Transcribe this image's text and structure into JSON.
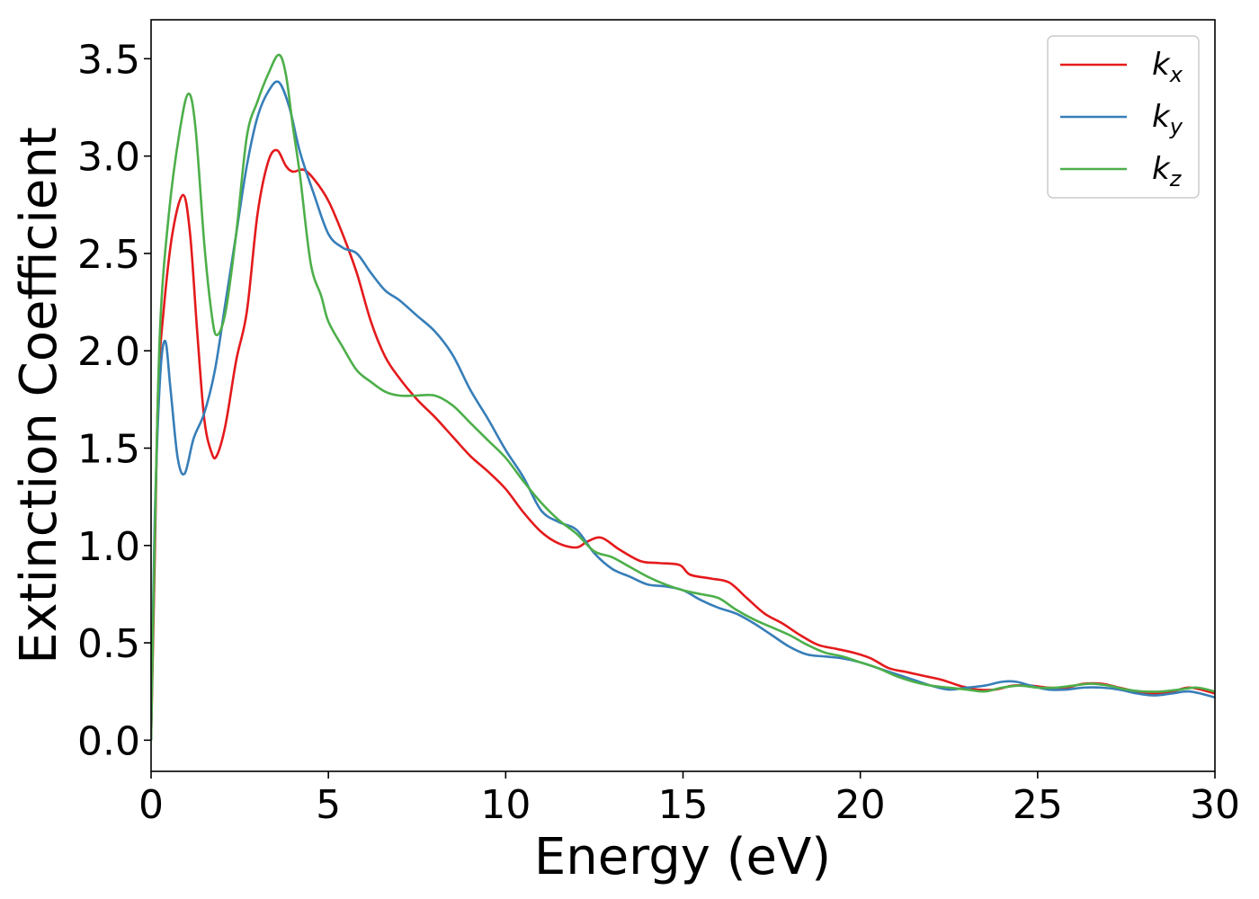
{
  "chart_data": {
    "type": "line",
    "title": "",
    "xlabel": "Energy (eV)",
    "ylabel": "Extinction Coefficient",
    "xlim": [
      0,
      30
    ],
    "ylim": [
      -0.16,
      3.7
    ],
    "xticks": [
      0,
      5,
      10,
      15,
      20,
      25,
      30
    ],
    "xtick_labels": [
      "0",
      "5",
      "10",
      "15",
      "20",
      "25",
      "30"
    ],
    "yticks": [
      0.0,
      0.5,
      1.0,
      1.5,
      2.0,
      2.5,
      3.0,
      3.5
    ],
    "ytick_labels": [
      "0.0",
      "0.5",
      "1.0",
      "1.5",
      "2.0",
      "2.5",
      "3.0",
      "3.5"
    ],
    "grid": false,
    "legend_position": "top-right",
    "series": [
      {
        "name": "k",
        "subscript": "x",
        "color": "#e41a1c",
        "points": [
          [
            0,
            0.0
          ],
          [
            0.1,
            0.9
          ],
          [
            0.2,
            1.8
          ],
          [
            0.35,
            2.2
          ],
          [
            0.6,
            2.6
          ],
          [
            0.9,
            2.8
          ],
          [
            1.1,
            2.6
          ],
          [
            1.3,
            2.1
          ],
          [
            1.5,
            1.65
          ],
          [
            1.7,
            1.48
          ],
          [
            1.85,
            1.46
          ],
          [
            2.1,
            1.62
          ],
          [
            2.4,
            1.95
          ],
          [
            2.7,
            2.2
          ],
          [
            3.0,
            2.7
          ],
          [
            3.3,
            2.97
          ],
          [
            3.55,
            3.03
          ],
          [
            3.8,
            2.95
          ],
          [
            4.0,
            2.92
          ],
          [
            4.3,
            2.93
          ],
          [
            4.6,
            2.88
          ],
          [
            5.0,
            2.77
          ],
          [
            5.4,
            2.6
          ],
          [
            5.8,
            2.4
          ],
          [
            6.2,
            2.15
          ],
          [
            6.6,
            1.97
          ],
          [
            7.0,
            1.86
          ],
          [
            7.5,
            1.75
          ],
          [
            8.0,
            1.66
          ],
          [
            8.5,
            1.56
          ],
          [
            9.0,
            1.46
          ],
          [
            9.5,
            1.38
          ],
          [
            10.0,
            1.29
          ],
          [
            10.5,
            1.17
          ],
          [
            11.0,
            1.07
          ],
          [
            11.5,
            1.01
          ],
          [
            12.0,
            0.99
          ],
          [
            12.3,
            1.02
          ],
          [
            12.7,
            1.04
          ],
          [
            13.2,
            0.98
          ],
          [
            13.8,
            0.92
          ],
          [
            14.3,
            0.91
          ],
          [
            14.9,
            0.9
          ],
          [
            15.2,
            0.85
          ],
          [
            15.8,
            0.83
          ],
          [
            16.3,
            0.81
          ],
          [
            16.8,
            0.73
          ],
          [
            17.3,
            0.65
          ],
          [
            17.8,
            0.6
          ],
          [
            18.3,
            0.54
          ],
          [
            18.8,
            0.49
          ],
          [
            19.3,
            0.47
          ],
          [
            19.8,
            0.45
          ],
          [
            20.3,
            0.42
          ],
          [
            20.8,
            0.37
          ],
          [
            21.3,
            0.35
          ],
          [
            21.8,
            0.33
          ],
          [
            22.3,
            0.31
          ],
          [
            22.8,
            0.28
          ],
          [
            23.3,
            0.26
          ],
          [
            23.8,
            0.26
          ],
          [
            24.3,
            0.28
          ],
          [
            24.8,
            0.28
          ],
          [
            25.3,
            0.27
          ],
          [
            25.8,
            0.27
          ],
          [
            26.3,
            0.29
          ],
          [
            26.8,
            0.29
          ],
          [
            27.3,
            0.27
          ],
          [
            27.8,
            0.25
          ],
          [
            28.3,
            0.24
          ],
          [
            28.8,
            0.25
          ],
          [
            29.3,
            0.27
          ],
          [
            30.0,
            0.24
          ]
        ]
      },
      {
        "name": "k",
        "subscript": "y",
        "color": "#377eb8",
        "points": [
          [
            0,
            0.0
          ],
          [
            0.1,
            1.1
          ],
          [
            0.25,
            1.85
          ],
          [
            0.4,
            2.05
          ],
          [
            0.55,
            1.8
          ],
          [
            0.75,
            1.45
          ],
          [
            0.95,
            1.37
          ],
          [
            1.2,
            1.55
          ],
          [
            1.5,
            1.68
          ],
          [
            1.8,
            1.9
          ],
          [
            2.1,
            2.25
          ],
          [
            2.4,
            2.6
          ],
          [
            2.7,
            2.95
          ],
          [
            3.0,
            3.2
          ],
          [
            3.3,
            3.33
          ],
          [
            3.6,
            3.38
          ],
          [
            3.9,
            3.25
          ],
          [
            4.2,
            3.02
          ],
          [
            4.6,
            2.8
          ],
          [
            5.0,
            2.6
          ],
          [
            5.4,
            2.53
          ],
          [
            5.8,
            2.5
          ],
          [
            6.2,
            2.4
          ],
          [
            6.6,
            2.31
          ],
          [
            7.0,
            2.26
          ],
          [
            7.5,
            2.18
          ],
          [
            8.0,
            2.1
          ],
          [
            8.5,
            1.98
          ],
          [
            9.0,
            1.8
          ],
          [
            9.5,
            1.65
          ],
          [
            10.0,
            1.49
          ],
          [
            10.5,
            1.35
          ],
          [
            11.0,
            1.18
          ],
          [
            11.5,
            1.12
          ],
          [
            12.0,
            1.08
          ],
          [
            12.5,
            0.96
          ],
          [
            13.0,
            0.88
          ],
          [
            13.5,
            0.84
          ],
          [
            14.0,
            0.8
          ],
          [
            14.5,
            0.79
          ],
          [
            15.0,
            0.77
          ],
          [
            15.5,
            0.72
          ],
          [
            16.0,
            0.68
          ],
          [
            16.5,
            0.65
          ],
          [
            17.0,
            0.6
          ],
          [
            17.5,
            0.54
          ],
          [
            18.0,
            0.48
          ],
          [
            18.5,
            0.44
          ],
          [
            19.0,
            0.43
          ],
          [
            19.5,
            0.42
          ],
          [
            20.0,
            0.4
          ],
          [
            20.5,
            0.37
          ],
          [
            21.0,
            0.34
          ],
          [
            21.5,
            0.31
          ],
          [
            22.0,
            0.28
          ],
          [
            22.5,
            0.26
          ],
          [
            23.0,
            0.27
          ],
          [
            23.5,
            0.28
          ],
          [
            24.0,
            0.3
          ],
          [
            24.4,
            0.3
          ],
          [
            24.8,
            0.28
          ],
          [
            25.3,
            0.26
          ],
          [
            25.8,
            0.26
          ],
          [
            26.3,
            0.27
          ],
          [
            26.8,
            0.27
          ],
          [
            27.3,
            0.26
          ],
          [
            27.8,
            0.24
          ],
          [
            28.3,
            0.23
          ],
          [
            28.8,
            0.24
          ],
          [
            29.3,
            0.25
          ],
          [
            30.0,
            0.22
          ]
        ]
      },
      {
        "name": "k",
        "subscript": "z",
        "color": "#4daf4a",
        "points": [
          [
            0,
            0.0
          ],
          [
            0.1,
            1.0
          ],
          [
            0.25,
            2.1
          ],
          [
            0.5,
            2.7
          ],
          [
            0.8,
            3.12
          ],
          [
            1.05,
            3.32
          ],
          [
            1.25,
            3.15
          ],
          [
            1.5,
            2.55
          ],
          [
            1.7,
            2.2
          ],
          [
            1.85,
            2.08
          ],
          [
            2.1,
            2.2
          ],
          [
            2.4,
            2.6
          ],
          [
            2.7,
            3.1
          ],
          [
            3.0,
            3.28
          ],
          [
            3.3,
            3.42
          ],
          [
            3.6,
            3.52
          ],
          [
            3.8,
            3.42
          ],
          [
            4.0,
            3.15
          ],
          [
            4.2,
            2.9
          ],
          [
            4.5,
            2.45
          ],
          [
            4.8,
            2.28
          ],
          [
            5.0,
            2.15
          ],
          [
            5.4,
            2.02
          ],
          [
            5.8,
            1.9
          ],
          [
            6.2,
            1.84
          ],
          [
            6.6,
            1.79
          ],
          [
            7.0,
            1.77
          ],
          [
            7.5,
            1.77
          ],
          [
            8.0,
            1.77
          ],
          [
            8.5,
            1.72
          ],
          [
            9.0,
            1.63
          ],
          [
            9.5,
            1.54
          ],
          [
            10.0,
            1.45
          ],
          [
            10.5,
            1.33
          ],
          [
            11.0,
            1.22
          ],
          [
            11.5,
            1.13
          ],
          [
            12.0,
            1.06
          ],
          [
            12.5,
            0.97
          ],
          [
            13.0,
            0.94
          ],
          [
            13.5,
            0.89
          ],
          [
            14.0,
            0.84
          ],
          [
            14.5,
            0.8
          ],
          [
            15.0,
            0.77
          ],
          [
            15.5,
            0.75
          ],
          [
            16.0,
            0.73
          ],
          [
            16.5,
            0.67
          ],
          [
            17.0,
            0.62
          ],
          [
            17.5,
            0.58
          ],
          [
            18.0,
            0.54
          ],
          [
            18.5,
            0.49
          ],
          [
            19.0,
            0.45
          ],
          [
            19.5,
            0.43
          ],
          [
            20.0,
            0.4
          ],
          [
            20.5,
            0.37
          ],
          [
            21.0,
            0.33
          ],
          [
            21.5,
            0.3
          ],
          [
            22.0,
            0.28
          ],
          [
            22.5,
            0.27
          ],
          [
            23.0,
            0.26
          ],
          [
            23.5,
            0.25
          ],
          [
            24.0,
            0.27
          ],
          [
            24.5,
            0.28
          ],
          [
            25.0,
            0.27
          ],
          [
            25.5,
            0.27
          ],
          [
            26.0,
            0.28
          ],
          [
            26.5,
            0.29
          ],
          [
            27.0,
            0.28
          ],
          [
            27.5,
            0.26
          ],
          [
            28.0,
            0.25
          ],
          [
            28.5,
            0.25
          ],
          [
            29.0,
            0.26
          ],
          [
            29.5,
            0.27
          ],
          [
            30.0,
            0.25
          ]
        ]
      }
    ]
  }
}
